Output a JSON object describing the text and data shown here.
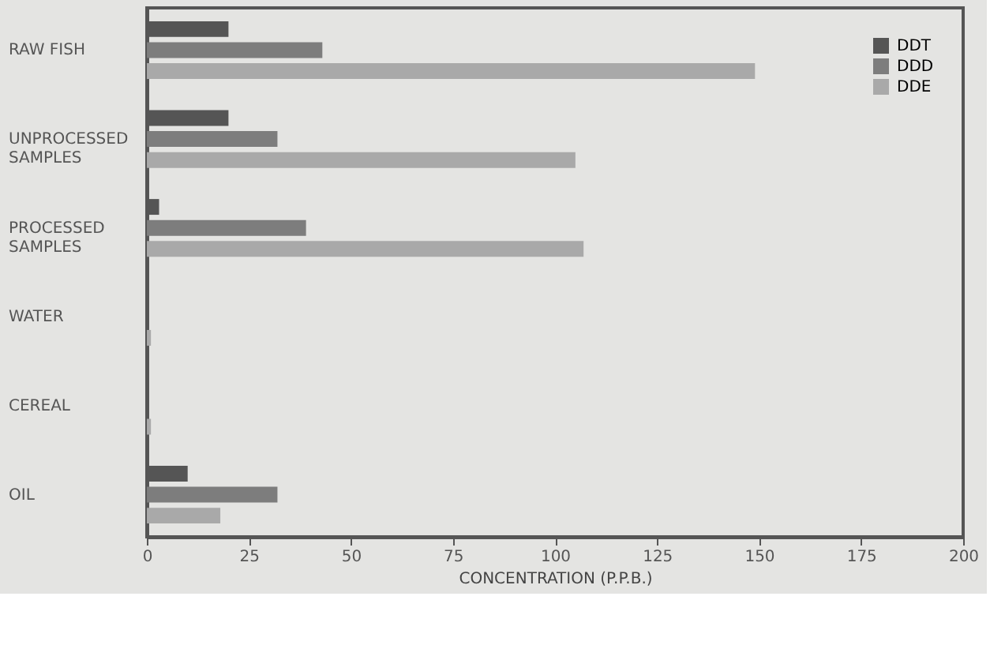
{
  "chart_data": {
    "type": "bar",
    "orientation": "horizontal",
    "categories": [
      "RAW FISH",
      "UNPROCESSED SAMPLES",
      "PROCESSED SAMPLES",
      "WATER",
      "CEREAL",
      "OIL"
    ],
    "series": [
      {
        "name": "DDT",
        "color": "#555555",
        "values": [
          20,
          20,
          3,
          0,
          0,
          10
        ]
      },
      {
        "name": "DDD",
        "color": "#7d7d7d",
        "values": [
          43,
          32,
          39,
          0,
          0,
          32
        ]
      },
      {
        "name": "DDE",
        "color": "#a9a9a9",
        "values": [
          149,
          105,
          107,
          1,
          1,
          18
        ]
      }
    ],
    "xlabel": "CONCENTRATION (P.P.B.)",
    "xlim": [
      0,
      200
    ],
    "xticks": [
      0,
      25,
      50,
      75,
      100,
      125,
      150,
      175,
      200
    ],
    "grid": false,
    "legend": "top right"
  }
}
